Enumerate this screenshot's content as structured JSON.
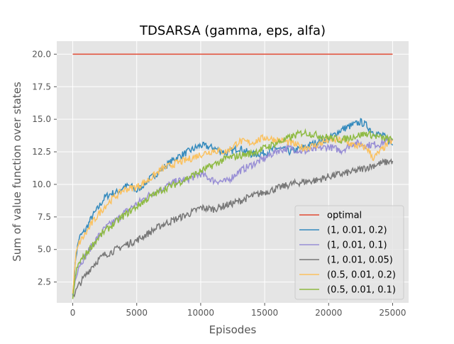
{
  "chart_data": {
    "type": "line",
    "title": "TDSARSA (gamma, eps, alfa)",
    "xlabel": "Episodes",
    "ylabel": "Sum of value function over states",
    "xlim": [
      -1250,
      26250
    ],
    "ylim": [
      0.9,
      21.0
    ],
    "x_ticks": [
      0,
      5000,
      10000,
      15000,
      20000,
      25000
    ],
    "x_tick_labels": [
      "0",
      "5000",
      "10000",
      "15000",
      "20000",
      "25000"
    ],
    "y_ticks": [
      2.5,
      5.0,
      7.5,
      10.0,
      12.5,
      15.0,
      17.5,
      20.0
    ],
    "y_tick_labels": [
      "2.5",
      "5.0",
      "7.5",
      "10.0",
      "12.5",
      "15.0",
      "17.5",
      "20.0"
    ],
    "grid": true,
    "legend_position": "lower right",
    "background_color": "#e5e5e5",
    "series": [
      {
        "name": "optimal",
        "color": "#e24a33",
        "x": [
          0,
          25000
        ],
        "y": [
          20.0,
          20.0
        ]
      },
      {
        "name": "(1, 0.01, 0.2)",
        "color": "#348abd",
        "x": [
          0,
          250,
          500,
          1000,
          1500,
          2000,
          2500,
          3000,
          3500,
          4000,
          4500,
          5000,
          6000,
          7000,
          8000,
          9000,
          10000,
          11000,
          12000,
          13000,
          14000,
          15000,
          16000,
          17000,
          18000,
          19000,
          20000,
          21000,
          22000,
          22500,
          23000,
          23500,
          24000,
          24500,
          25000
        ],
        "y": [
          1.5,
          4.5,
          5.9,
          6.5,
          7.5,
          8.2,
          9.0,
          9.3,
          9.4,
          9.8,
          9.9,
          9.5,
          10.4,
          11.2,
          12.0,
          12.5,
          13.0,
          12.8,
          12.4,
          12.8,
          12.3,
          12.4,
          12.8,
          12.5,
          12.8,
          13.2,
          13.5,
          14.2,
          14.6,
          14.8,
          14.5,
          14.0,
          13.8,
          13.6,
          13.0
        ]
      },
      {
        "name": "(1, 0.01, 0.1)",
        "color": "#988ed5",
        "x": [
          0,
          250,
          500,
          1000,
          1500,
          2000,
          2500,
          3000,
          3500,
          4000,
          5000,
          6000,
          7000,
          8000,
          9000,
          10000,
          11000,
          12000,
          13000,
          14000,
          15000,
          16000,
          17000,
          18000,
          19000,
          20000,
          21000,
          22000,
          23000,
          24000,
          25000
        ],
        "y": [
          1.4,
          3.0,
          3.8,
          4.5,
          5.3,
          6.0,
          6.6,
          7.0,
          7.3,
          7.8,
          8.5,
          9.2,
          9.7,
          10.2,
          10.4,
          10.8,
          10.3,
          10.2,
          11.0,
          11.5,
          12.0,
          12.6,
          12.8,
          12.5,
          12.7,
          12.9,
          12.6,
          13.2,
          13.0,
          13.1,
          13.5
        ]
      },
      {
        "name": "(1, 0.01, 0.05)",
        "color": "#777777",
        "x": [
          0,
          250,
          500,
          1000,
          1500,
          2000,
          2500,
          3000,
          4000,
          5000,
          6000,
          7000,
          8000,
          9000,
          10000,
          11000,
          12000,
          13000,
          14000,
          15000,
          16000,
          17000,
          18000,
          19000,
          20000,
          21000,
          22000,
          23000,
          24000,
          25000
        ],
        "y": [
          1.4,
          1.8,
          2.3,
          3.0,
          3.7,
          4.2,
          4.6,
          4.8,
          5.3,
          5.7,
          6.3,
          6.9,
          7.3,
          7.7,
          8.2,
          8.1,
          8.4,
          8.7,
          9.1,
          9.4,
          9.7,
          10.0,
          10.2,
          10.3,
          10.6,
          10.8,
          11.0,
          11.3,
          11.6,
          11.8
        ]
      },
      {
        "name": "(0.5, 0.01, 0.2)",
        "color": "#fbc15e",
        "x": [
          0,
          250,
          500,
          1000,
          1500,
          2000,
          2500,
          3000,
          3500,
          4000,
          5000,
          6000,
          7000,
          8000,
          9000,
          10000,
          11000,
          12000,
          13000,
          14000,
          15000,
          16000,
          17000,
          18000,
          19000,
          20000,
          21000,
          22000,
          23000,
          23500,
          24000,
          24500,
          25000
        ],
        "y": [
          1.6,
          4.6,
          5.5,
          6.2,
          7.0,
          7.7,
          8.3,
          8.8,
          9.2,
          9.6,
          9.8,
          10.4,
          11.2,
          11.6,
          11.9,
          12.3,
          12.6,
          12.5,
          13.3,
          13.2,
          13.6,
          13.4,
          13.2,
          12.8,
          13.0,
          13.4,
          13.4,
          13.0,
          12.8,
          12.0,
          12.5,
          13.0,
          13.4
        ]
      },
      {
        "name": "(0.5, 0.01, 0.1)",
        "color": "#8eba42",
        "x": [
          0,
          250,
          500,
          1000,
          1500,
          2000,
          2500,
          3000,
          3500,
          4000,
          5000,
          6000,
          7000,
          8000,
          9000,
          10000,
          11000,
          12000,
          13000,
          14000,
          15000,
          16000,
          17000,
          18000,
          19000,
          20000,
          21000,
          22000,
          23000,
          24000,
          25000
        ],
        "y": [
          1.2,
          3.2,
          4.0,
          4.6,
          5.3,
          5.9,
          6.4,
          6.8,
          7.2,
          7.6,
          8.3,
          9.0,
          9.6,
          10.0,
          10.5,
          11.0,
          11.5,
          12.0,
          12.2,
          12.4,
          12.8,
          13.2,
          13.6,
          14.0,
          13.8,
          13.6,
          13.4,
          13.7,
          13.9,
          13.6,
          13.4
        ]
      }
    ]
  }
}
